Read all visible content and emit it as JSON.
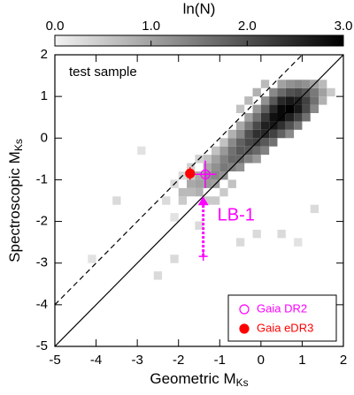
{
  "chart_data": {
    "type": "heatmap",
    "title": "ln(N)",
    "xlabel": "Geometric M",
    "xlabel_sub": "Ks",
    "ylabel": "Spectroscopic M",
    "ylabel_sub": "Ks",
    "annotation": "test sample",
    "xlim": [
      -5,
      2
    ],
    "ylim": [
      -5,
      2
    ],
    "xticks": [
      -5,
      -4,
      -3,
      -2,
      -1,
      0,
      1,
      2
    ],
    "yticks": [
      -5,
      -4,
      -3,
      -2,
      -1,
      0,
      1,
      2
    ],
    "colorbar": {
      "lim": [
        0,
        3
      ],
      "ticks": [
        {
          "value": 0,
          "label": "0.0"
        },
        {
          "value": 1,
          "label": "1.0"
        },
        {
          "value": 2,
          "label": "2.0"
        },
        {
          "value": 3,
          "label": "3.0"
        }
      ]
    },
    "bin_size": 0.2,
    "cells": [
      [
        -2.4,
        -1.6,
        0.3
      ],
      [
        -2.2,
        -1.2,
        0.3
      ],
      [
        -2.2,
        -2.0,
        0.2
      ],
      [
        -2.0,
        -1.6,
        0.5
      ],
      [
        -2.0,
        -1.4,
        0.7
      ],
      [
        -2.0,
        -1.0,
        0.3
      ],
      [
        -1.8,
        -1.4,
        0.7
      ],
      [
        -1.8,
        -1.2,
        0.9
      ],
      [
        -1.8,
        -1.0,
        0.5
      ],
      [
        -1.8,
        -0.8,
        0.4
      ],
      [
        -1.6,
        -1.4,
        0.8
      ],
      [
        -1.6,
        -1.2,
        1.0
      ],
      [
        -1.6,
        -1.0,
        0.9
      ],
      [
        -1.6,
        -0.6,
        0.4
      ],
      [
        -1.6,
        -2.2,
        0.3
      ],
      [
        -1.4,
        -1.2,
        1.1
      ],
      [
        -1.4,
        -1.0,
        1.2
      ],
      [
        -1.4,
        -0.8,
        0.9
      ],
      [
        -1.4,
        -0.6,
        0.6
      ],
      [
        -1.4,
        -1.6,
        0.5
      ],
      [
        -1.2,
        -1.2,
        1.0
      ],
      [
        -1.2,
        -1.0,
        1.3
      ],
      [
        -1.2,
        -0.8,
        1.2
      ],
      [
        -1.2,
        -0.6,
        1.0
      ],
      [
        -1.2,
        -0.4,
        0.6
      ],
      [
        -1.2,
        -1.6,
        0.5
      ],
      [
        -1.0,
        -1.0,
        1.2
      ],
      [
        -1.0,
        -0.8,
        1.5
      ],
      [
        -1.0,
        -0.6,
        1.4
      ],
      [
        -1.0,
        -0.4,
        1.1
      ],
      [
        -1.0,
        -0.2,
        0.6
      ],
      [
        -1.0,
        -1.4,
        0.5
      ],
      [
        -0.8,
        -0.8,
        1.4
      ],
      [
        -0.8,
        -0.6,
        1.7
      ],
      [
        -0.8,
        -0.4,
        1.6
      ],
      [
        -0.8,
        -0.2,
        1.3
      ],
      [
        -0.8,
        0.0,
        0.8
      ],
      [
        -0.8,
        -1.2,
        0.6
      ],
      [
        -0.6,
        -0.8,
        1.2
      ],
      [
        -0.6,
        -0.6,
        1.7
      ],
      [
        -0.6,
        -0.4,
        1.9
      ],
      [
        -0.6,
        -0.2,
        1.8
      ],
      [
        -0.6,
        0.0,
        1.3
      ],
      [
        -0.6,
        0.2,
        0.9
      ],
      [
        -0.6,
        0.6,
        0.6
      ],
      [
        -0.4,
        -0.6,
        1.4
      ],
      [
        -0.4,
        -0.4,
        1.9
      ],
      [
        -0.4,
        -0.2,
        2.1
      ],
      [
        -0.4,
        0.0,
        2.0
      ],
      [
        -0.4,
        0.2,
        1.5
      ],
      [
        -0.4,
        0.4,
        1.0
      ],
      [
        -0.4,
        0.8,
        0.7
      ],
      [
        -0.2,
        -0.6,
        1.1
      ],
      [
        -0.2,
        -0.4,
        1.7
      ],
      [
        -0.2,
        -0.2,
        2.2
      ],
      [
        -0.2,
        0.0,
        2.4
      ],
      [
        -0.2,
        0.2,
        2.1
      ],
      [
        -0.2,
        0.4,
        1.6
      ],
      [
        -0.2,
        0.6,
        1.1
      ],
      [
        -0.2,
        1.0,
        0.8
      ],
      [
        0.0,
        -0.4,
        1.4
      ],
      [
        0.0,
        -0.2,
        1.9
      ],
      [
        0.0,
        0.0,
        2.5
      ],
      [
        0.0,
        0.2,
        2.6
      ],
      [
        0.0,
        0.4,
        2.3
      ],
      [
        0.0,
        0.6,
        1.8
      ],
      [
        0.0,
        0.8,
        1.2
      ],
      [
        0.0,
        1.2,
        0.7
      ],
      [
        0.2,
        -0.2,
        1.6
      ],
      [
        0.2,
        0.0,
        2.2
      ],
      [
        0.2,
        0.2,
        2.7
      ],
      [
        0.2,
        0.4,
        2.8
      ],
      [
        0.2,
        0.6,
        2.5
      ],
      [
        0.2,
        0.8,
        1.9
      ],
      [
        0.2,
        1.0,
        1.3
      ],
      [
        0.4,
        0.0,
        1.8
      ],
      [
        0.4,
        0.2,
        2.4
      ],
      [
        0.4,
        0.4,
        2.9
      ],
      [
        0.4,
        0.6,
        2.9
      ],
      [
        0.4,
        0.8,
        2.5
      ],
      [
        0.4,
        1.0,
        1.7
      ],
      [
        0.4,
        1.2,
        1.0
      ],
      [
        0.6,
        0.0,
        1.3
      ],
      [
        0.6,
        0.2,
        2.0
      ],
      [
        0.6,
        0.4,
        2.6
      ],
      [
        0.6,
        0.6,
        3.0
      ],
      [
        0.6,
        0.8,
        2.7
      ],
      [
        0.6,
        1.0,
        2.0
      ],
      [
        0.6,
        1.2,
        1.2
      ],
      [
        0.8,
        0.2,
        1.5
      ],
      [
        0.8,
        0.4,
        2.2
      ],
      [
        0.8,
        0.6,
        2.7
      ],
      [
        0.8,
        0.8,
        2.6
      ],
      [
        0.8,
        1.0,
        2.1
      ],
      [
        0.8,
        1.2,
        1.3
      ],
      [
        1.0,
        0.4,
        1.6
      ],
      [
        1.0,
        0.6,
        2.1
      ],
      [
        1.0,
        0.8,
        2.2
      ],
      [
        1.0,
        1.0,
        1.9
      ],
      [
        1.0,
        1.2,
        1.2
      ],
      [
        1.2,
        0.6,
        1.3
      ],
      [
        1.2,
        0.8,
        1.6
      ],
      [
        1.2,
        1.0,
        1.5
      ],
      [
        1.2,
        1.2,
        1.0
      ],
      [
        1.4,
        0.8,
        0.8
      ],
      [
        1.4,
        1.0,
        1.0
      ],
      [
        1.4,
        1.2,
        0.7
      ],
      [
        1.6,
        1.0,
        0.5
      ],
      [
        -2.2,
        -3.0,
        0.3
      ],
      [
        -0.6,
        -2.6,
        0.3
      ],
      [
        -3.6,
        -1.6,
        0.3
      ],
      [
        -4.2,
        -3.0,
        0.2
      ],
      [
        0.4,
        -2.4,
        0.3
      ],
      [
        -0.2,
        -2.4,
        0.3
      ],
      [
        0.8,
        -2.6,
        0.2
      ],
      [
        -2.6,
        -3.4,
        0.3
      ],
      [
        1.2,
        -1.8,
        0.3
      ],
      [
        -3.0,
        -0.4,
        0.2
      ]
    ],
    "lines": [
      {
        "slope": 1,
        "intercept": 0,
        "dashed": false
      },
      {
        "slope": 1,
        "intercept": 1,
        "dashed": true
      }
    ],
    "series": [
      {
        "name": "Gaia DR2",
        "color": "#ff00ff",
        "x": -1.35,
        "y": -0.87,
        "xerr": 0.27,
        "yerr": 0.33,
        "filled": false
      },
      {
        "name": "Gaia eDR3",
        "color": "#ff0000",
        "x": -1.72,
        "y": -0.85,
        "xerr": 0.1,
        "yerr": 0.15,
        "filled": true
      }
    ],
    "arrow": {
      "label": "LB-1",
      "x": -1.4,
      "y_from": -2.84,
      "y_to": -1.4,
      "color": "#ff00ff"
    }
  }
}
